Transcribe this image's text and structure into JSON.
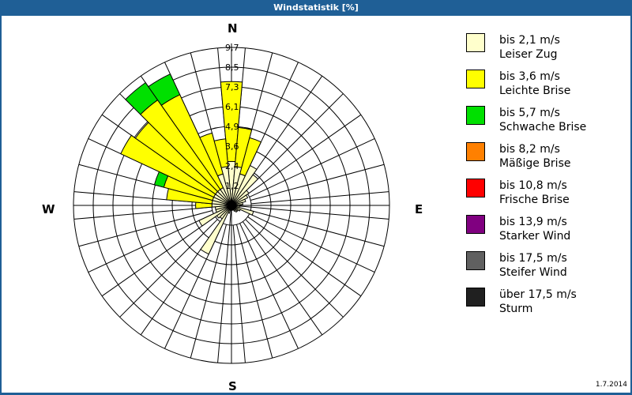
{
  "window": {
    "title": "Windstatistik [%]",
    "date": "1.7.2014"
  },
  "compass": {
    "north": "N",
    "east": "E",
    "south": "S",
    "west": "W"
  },
  "legend": [
    {
      "range": "bis 2,1 m/s",
      "label": "Leiser Zug",
      "color": "#ffffcc"
    },
    {
      "range": "bis 3,6 m/s",
      "label": "Leichte Brise",
      "color": "#ffff00"
    },
    {
      "range": "bis 5,7 m/s",
      "label": "Schwache Brise",
      "color": "#00e000"
    },
    {
      "range": "bis 8,2 m/s",
      "label": "Mäßige Brise",
      "color": "#ff8000"
    },
    {
      "range": "bis 10,8 m/s",
      "label": "Frische Brise",
      "color": "#ff0000"
    },
    {
      "range": "bis 13,9 m/s",
      "label": "Starker Wind",
      "color": "#800080"
    },
    {
      "range": "bis 17,5 m/s",
      "label": "Steifer Wind",
      "color": "#606060"
    },
    {
      "range": "über 17,5 m/s",
      "label": "Sturm",
      "color": "#202020"
    }
  ],
  "chart_data": {
    "type": "polar-bar",
    "title": "Windstatistik [%]",
    "unit": "%",
    "radial_ticks": [
      "1,2",
      "2,4",
      "3,6",
      "4,9",
      "6,1",
      "7,3",
      "8,5",
      "9,7"
    ],
    "radial_max": 9.7,
    "sector_width_deg": 10,
    "series": [
      "bis 2,1 m/s",
      "bis 3,6 m/s",
      "bis 5,7 m/s"
    ],
    "sectors": [
      {
        "dir": 0,
        "values": [
          2.7,
          4.9,
          0
        ]
      },
      {
        "dir": 10,
        "values": [
          2.4,
          2.4,
          0
        ]
      },
      {
        "dir": 20,
        "values": [
          2.0,
          2.3,
          0
        ]
      },
      {
        "dir": 30,
        "values": [
          2.7,
          0,
          0
        ]
      },
      {
        "dir": 40,
        "values": [
          2.3,
          0,
          0
        ]
      },
      {
        "dir": 50,
        "values": [
          1.3,
          0,
          0
        ]
      },
      {
        "dir": 60,
        "values": [
          1.1,
          0,
          0
        ]
      },
      {
        "dir": 70,
        "values": [
          0.9,
          0,
          0
        ]
      },
      {
        "dir": 80,
        "values": [
          0.7,
          0,
          0
        ]
      },
      {
        "dir": 90,
        "values": [
          0.5,
          0,
          0
        ]
      },
      {
        "dir": 100,
        "values": [
          0.5,
          0,
          0
        ]
      },
      {
        "dir": 110,
        "values": [
          1.4,
          0,
          0
        ]
      },
      {
        "dir": 120,
        "values": [
          0.6,
          0,
          0
        ]
      },
      {
        "dir": 130,
        "values": [
          0.5,
          0,
          0
        ]
      },
      {
        "dir": 140,
        "values": [
          0.5,
          0,
          0
        ]
      },
      {
        "dir": 150,
        "values": [
          0.4,
          0,
          0
        ]
      },
      {
        "dir": 160,
        "values": [
          0.3,
          0,
          0
        ]
      },
      {
        "dir": 170,
        "values": [
          0.3,
          0,
          0
        ]
      },
      {
        "dir": 180,
        "values": [
          0.3,
          0,
          0
        ]
      },
      {
        "dir": 190,
        "values": [
          0.3,
          0,
          0
        ]
      },
      {
        "dir": 200,
        "values": [
          0.5,
          0,
          0
        ]
      },
      {
        "dir": 210,
        "values": [
          3.3,
          0,
          0
        ]
      },
      {
        "dir": 220,
        "values": [
          1.0,
          0,
          0
        ]
      },
      {
        "dir": 230,
        "values": [
          1.1,
          0,
          0
        ]
      },
      {
        "dir": 240,
        "values": [
          2.2,
          0,
          0
        ]
      },
      {
        "dir": 250,
        "values": [
          1.0,
          0,
          0
        ]
      },
      {
        "dir": 260,
        "values": [
          1.0,
          0,
          0
        ]
      },
      {
        "dir": 270,
        "values": [
          1.2,
          1.0,
          0
        ]
      },
      {
        "dir": 280,
        "values": [
          1.2,
          2.8,
          0
        ]
      },
      {
        "dir": 290,
        "values": [
          1.2,
          3.1,
          0.6
        ]
      },
      {
        "dir": 300,
        "values": [
          1.2,
          6.3,
          0
        ]
      },
      {
        "dir": 310,
        "values": [
          1.2,
          6.0,
          0
        ]
      },
      {
        "dir": 320,
        "values": [
          1.2,
          6.7,
          1.3
        ]
      },
      {
        "dir": 330,
        "values": [
          1.2,
          6.3,
          1.4
        ]
      },
      {
        "dir": 340,
        "values": [
          2.0,
          2.6,
          0
        ]
      },
      {
        "dir": 350,
        "values": [
          2.4,
          1.7,
          0
        ]
      }
    ]
  }
}
